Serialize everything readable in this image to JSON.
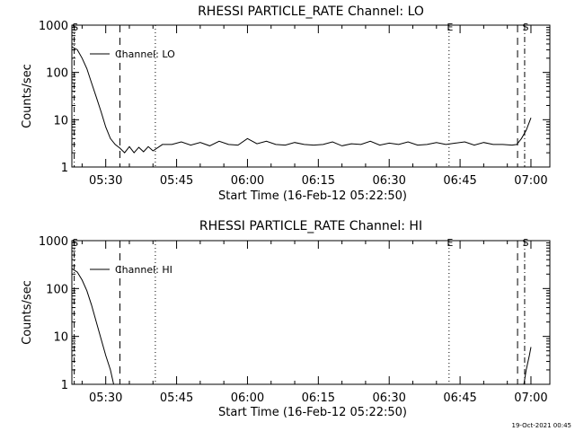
{
  "footer_date": "19-Oct-2021 00:45",
  "chart_data": [
    {
      "type": "line",
      "title": "RHESSI PARTICLE_RATE Channel: LO",
      "xlabel": "Start Time (16-Feb-12 05:22:50)",
      "ylabel": "Counts/sec",
      "yscale": "log",
      "ylim": [
        1,
        1000
      ],
      "xlim": [
        "05:22:50",
        "07:04:00"
      ],
      "x_ticks": [
        "05:30",
        "05:45",
        "06:00",
        "06:15",
        "06:30",
        "06:45",
        "07:00"
      ],
      "y_ticks": [
        "1",
        "10",
        "100",
        "1000"
      ],
      "legend": "top-left",
      "markers": [
        {
          "label": "S",
          "time": "05:23:20",
          "style": "dash-dot"
        },
        {
          "label": "",
          "time": "05:33:00",
          "style": "dashed"
        },
        {
          "label": "",
          "time": "05:40:30",
          "style": "dotted"
        },
        {
          "label": "E",
          "time": "06:42:40",
          "style": "dotted"
        },
        {
          "label": "",
          "time": "06:57:10",
          "style": "dashed"
        },
        {
          "label": "S",
          "time": "06:58:40",
          "style": "dash-dot"
        }
      ],
      "series": [
        {
          "name": "Channel: LO",
          "x": [
            "05:22:50",
            "05:24:00",
            "05:25:00",
            "05:26:00",
            "05:27:00",
            "05:28:00",
            "05:29:00",
            "05:30:00",
            "05:31:00",
            "05:32:00",
            "05:33:00",
            "05:34:00",
            "05:35:00",
            "05:36:00",
            "05:37:00",
            "05:38:00",
            "05:39:00",
            "05:40:00",
            "05:42:00",
            "05:44:00",
            "05:46:00",
            "05:48:00",
            "05:50:00",
            "05:52:00",
            "05:54:00",
            "05:56:00",
            "05:58:00",
            "06:00:00",
            "06:02:00",
            "06:04:00",
            "06:06:00",
            "06:08:00",
            "06:10:00",
            "06:12:00",
            "06:14:00",
            "06:16:00",
            "06:18:00",
            "06:20:00",
            "06:22:00",
            "06:24:00",
            "06:26:00",
            "06:28:00",
            "06:30:00",
            "06:32:00",
            "06:34:00",
            "06:36:00",
            "06:38:00",
            "06:40:00",
            "06:42:00",
            "06:44:00",
            "06:46:00",
            "06:48:00",
            "06:50:00",
            "06:52:00",
            "06:54:00",
            "06:56:00",
            "06:57:00",
            "06:58:00",
            "06:59:00",
            "07:00:00"
          ],
          "y": [
            350,
            300,
            200,
            120,
            60,
            30,
            15,
            7,
            4,
            3,
            2.5,
            2,
            2.7,
            2,
            2.6,
            2.1,
            2.7,
            2.2,
            3,
            3,
            3.4,
            2.9,
            3.3,
            2.8,
            3.5,
            3,
            2.9,
            4,
            3.1,
            3.5,
            3,
            2.9,
            3.3,
            3,
            2.9,
            3,
            3.4,
            2.8,
            3.1,
            3,
            3.5,
            2.9,
            3.2,
            3,
            3.4,
            2.9,
            3,
            3.3,
            3,
            3.2,
            3.4,
            2.9,
            3.3,
            3,
            3,
            2.9,
            3,
            4,
            6,
            11
          ]
        }
      ]
    },
    {
      "type": "line",
      "title": "RHESSI PARTICLE_RATE Channel: HI",
      "xlabel": "Start Time (16-Feb-12 05:22:50)",
      "ylabel": "Counts/sec",
      "yscale": "log",
      "ylim": [
        1,
        1000
      ],
      "xlim": [
        "05:22:50",
        "07:04:00"
      ],
      "x_ticks": [
        "05:30",
        "05:45",
        "06:00",
        "06:15",
        "06:30",
        "06:45",
        "07:00"
      ],
      "y_ticks": [
        "1",
        "10",
        "100",
        "1000"
      ],
      "legend": "top-left",
      "markers": [
        {
          "label": "S",
          "time": "05:23:20",
          "style": "dash-dot"
        },
        {
          "label": "",
          "time": "05:33:00",
          "style": "dashed"
        },
        {
          "label": "",
          "time": "05:40:30",
          "style": "dotted"
        },
        {
          "label": "E",
          "time": "06:42:40",
          "style": "dotted"
        },
        {
          "label": "",
          "time": "06:57:10",
          "style": "dashed"
        },
        {
          "label": "S",
          "time": "06:58:40",
          "style": "dash-dot"
        }
      ],
      "series": [
        {
          "name": "Channel: HI",
          "segments": [
            {
              "x": [
                "05:22:50",
                "05:24:00",
                "05:25:00",
                "05:26:00",
                "05:27:00",
                "05:28:00",
                "05:29:00",
                "05:30:00",
                "05:31:00",
                "05:31:40"
              ],
              "y": [
                260,
                220,
                150,
                90,
                45,
                20,
                9,
                4,
                2,
                1
              ]
            },
            {
              "x": [
                "06:58:30",
                "06:59:00",
                "06:59:40",
                "07:00:00"
              ],
              "y": [
                1,
                2,
                4,
                6
              ]
            }
          ]
        }
      ]
    }
  ]
}
